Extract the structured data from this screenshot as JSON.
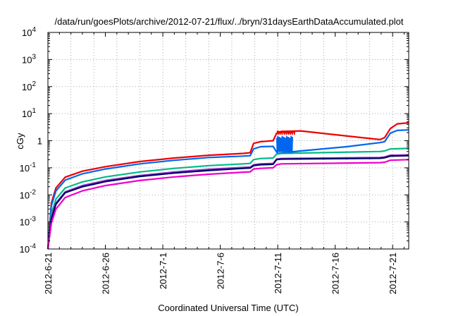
{
  "chart_data": {
    "type": "line",
    "title": "/data/run/goesPlots/archive/2012-07-21/flux/../bryn/31daysEarthDataAccumulated.plot",
    "xlabel": "Coordinated Universal Time (UTC)",
    "ylabel": "cGy",
    "yscale": "log",
    "ylim": [
      0.0001,
      10000
    ],
    "xlim": [
      0,
      31.4
    ],
    "x_ticks": [
      {
        "x": 0,
        "label": "2012-6-21"
      },
      {
        "x": 5,
        "label": "2012-6-26"
      },
      {
        "x": 10,
        "label": "2012-7-1"
      },
      {
        "x": 15,
        "label": "2012-7-6"
      },
      {
        "x": 20,
        "label": "2012-7-11"
      },
      {
        "x": 25,
        "label": "2012-7-16"
      },
      {
        "x": 30,
        "label": "2012-7-21"
      }
    ],
    "y_ticks": [
      {
        "value": 0.0001,
        "base": "10",
        "exp": "-4"
      },
      {
        "value": 0.001,
        "base": "10",
        "exp": "-3"
      },
      {
        "value": 0.01,
        "base": "10",
        "exp": "-2"
      },
      {
        "value": 0.1,
        "base": "10",
        "exp": "-1"
      },
      {
        "value": 1,
        "base": "1",
        "exp": ""
      },
      {
        "value": 10,
        "base": "10",
        "exp": "1"
      },
      {
        "value": 100,
        "base": "10",
        "exp": "2"
      },
      {
        "value": 1000,
        "base": "10",
        "exp": "3"
      },
      {
        "value": 10000,
        "base": "10",
        "exp": "4"
      }
    ],
    "grid": true,
    "series": [
      {
        "name": "series-red",
        "color": "#ee0000",
        "x": [
          0,
          0.3,
          0.7,
          1.5,
          3,
          5,
          8,
          11,
          14,
          17,
          17.6,
          17.9,
          18.5,
          19.6,
          19.9,
          20.3,
          22,
          28.9,
          29.3,
          29.8,
          30.4,
          31.4
        ],
        "y": [
          0.0001,
          0.005,
          0.018,
          0.045,
          0.075,
          0.11,
          0.17,
          0.23,
          0.29,
          0.34,
          0.36,
          0.8,
          0.92,
          1.0,
          1.9,
          2.2,
          2.3,
          1.1,
          1.3,
          2.8,
          4.2,
          4.6
        ]
      },
      {
        "name": "series-blue",
        "color": "#0066ee",
        "x": [
          0,
          0.3,
          0.7,
          1.5,
          3,
          5,
          8,
          11,
          14,
          17,
          17.6,
          17.9,
          18.5,
          19.6,
          20.0,
          20.5,
          22,
          26,
          28.9,
          29.3,
          29.8,
          30.4,
          31.4
        ],
        "y": [
          0.0001,
          0.004,
          0.014,
          0.035,
          0.06,
          0.09,
          0.14,
          0.19,
          0.24,
          0.27,
          0.28,
          0.5,
          0.6,
          0.62,
          0.33,
          0.36,
          0.42,
          0.6,
          0.85,
          0.92,
          1.9,
          2.4,
          2.5
        ]
      },
      {
        "name": "series-teal",
        "color": "#00bb88",
        "x": [
          0,
          0.3,
          0.7,
          1.5,
          3,
          5,
          8,
          11,
          14,
          17,
          17.6,
          17.9,
          18.5,
          19.6,
          19.9,
          20.3,
          28.9,
          29.3,
          29.8,
          31.4
        ],
        "y": [
          0.0001,
          0.002,
          0.007,
          0.018,
          0.03,
          0.046,
          0.07,
          0.095,
          0.12,
          0.14,
          0.145,
          0.2,
          0.22,
          0.23,
          0.32,
          0.34,
          0.4,
          0.42,
          0.5,
          0.52
        ]
      },
      {
        "name": "series-purple",
        "color": "#9933cc",
        "x": [
          0,
          0.3,
          0.7,
          1.5,
          3,
          5,
          8,
          11,
          14,
          17,
          17.6,
          17.9,
          18.5,
          19.6,
          19.9,
          20.3,
          28.9,
          29.3,
          29.8,
          31.4
        ],
        "y": [
          0.0001,
          0.0015,
          0.005,
          0.013,
          0.022,
          0.034,
          0.052,
          0.07,
          0.088,
          0.103,
          0.106,
          0.13,
          0.14,
          0.145,
          0.21,
          0.22,
          0.24,
          0.25,
          0.29,
          0.3
        ]
      },
      {
        "name": "series-navy",
        "color": "#000066",
        "x": [
          0,
          0.3,
          0.7,
          1.5,
          3,
          5,
          8,
          11,
          14,
          17,
          17.6,
          17.9,
          18.5,
          19.6,
          19.9,
          20.3,
          28.9,
          29.3,
          29.8,
          31.4
        ],
        "y": [
          0.0001,
          0.0013,
          0.0045,
          0.012,
          0.02,
          0.031,
          0.048,
          0.064,
          0.08,
          0.095,
          0.098,
          0.12,
          0.13,
          0.135,
          0.2,
          0.21,
          0.225,
          0.235,
          0.27,
          0.28
        ]
      },
      {
        "name": "series-magenta",
        "color": "#ee00cc",
        "x": [
          0,
          0.3,
          0.7,
          1.5,
          3,
          5,
          8,
          11,
          14,
          17,
          17.6,
          17.9,
          18.5,
          19.6,
          19.9,
          20.3,
          28.9,
          29.3,
          29.8,
          31.4
        ],
        "y": [
          0.0001,
          0.0009,
          0.003,
          0.008,
          0.014,
          0.022,
          0.034,
          0.046,
          0.058,
          0.069,
          0.071,
          0.09,
          0.095,
          0.1,
          0.13,
          0.14,
          0.155,
          0.16,
          0.19,
          0.2
        ]
      }
    ],
    "bursts": [
      {
        "series": "series-red",
        "x_start": 19.9,
        "x_end": 21.5,
        "y_low": 1.5,
        "y_high": 2.4
      },
      {
        "series": "series-blue",
        "x_start": 19.9,
        "x_end": 21.3,
        "y_low": 0.3,
        "y_high": 1.5
      }
    ]
  }
}
